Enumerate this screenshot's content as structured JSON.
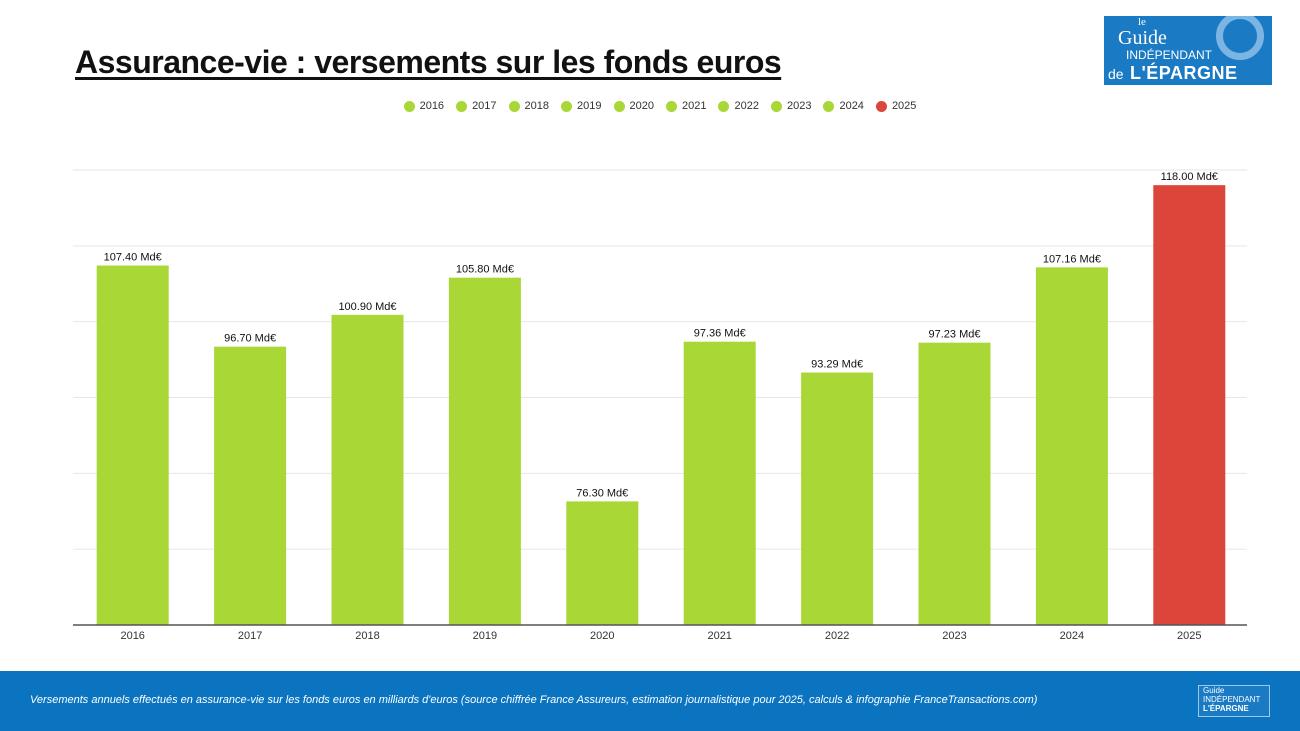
{
  "title": "Assurance-vie : versements sur les fonds euros",
  "logo": {
    "line1": "le",
    "line2": "Guide",
    "line3": "INDÉPENDANT",
    "line4": "de",
    "line5": "L'ÉPARGNE",
    "site": "FranceTransactions.com"
  },
  "footnote": "Versements annuels effectués en assurance-vie sur les fonds euros en milliards d'euros (source chiffrée France Assureurs, estimation journalistique pour 2025, calculs & infographie FranceTransactions.com)",
  "colors": {
    "green": "#a8d736",
    "red": "#dc453a",
    "footer": "#0b74c0"
  },
  "chart_data": {
    "type": "bar",
    "categories": [
      "2016",
      "2017",
      "2018",
      "2019",
      "2020",
      "2021",
      "2022",
      "2023",
      "2024",
      "2025"
    ],
    "values": [
      107.4,
      96.7,
      100.9,
      105.8,
      76.3,
      97.36,
      93.29,
      97.23,
      107.16,
      118.0
    ],
    "data_labels": [
      "107.40 Md€",
      "96.70 Md€",
      "100.90 Md€",
      "105.80 Md€",
      "76.30 Md€",
      "97.36 Md€",
      "93.29 Md€",
      "97.23 Md€",
      "107.16 Md€",
      "118.00 Md€"
    ],
    "bar_colors": [
      "#a8d736",
      "#a8d736",
      "#a8d736",
      "#a8d736",
      "#a8d736",
      "#a8d736",
      "#a8d736",
      "#a8d736",
      "#a8d736",
      "#dc453a"
    ],
    "legend": [
      "2016",
      "2017",
      "2018",
      "2019",
      "2020",
      "2021",
      "2022",
      "2023",
      "2024",
      "2025"
    ],
    "legend_position": "top",
    "ylim": [
      60,
      120
    ],
    "y_gridlines": [
      60,
      70,
      80,
      90,
      100,
      110,
      120
    ],
    "y_tick_labels_visible": false,
    "grid": true,
    "xlabel": "",
    "ylabel": ""
  }
}
